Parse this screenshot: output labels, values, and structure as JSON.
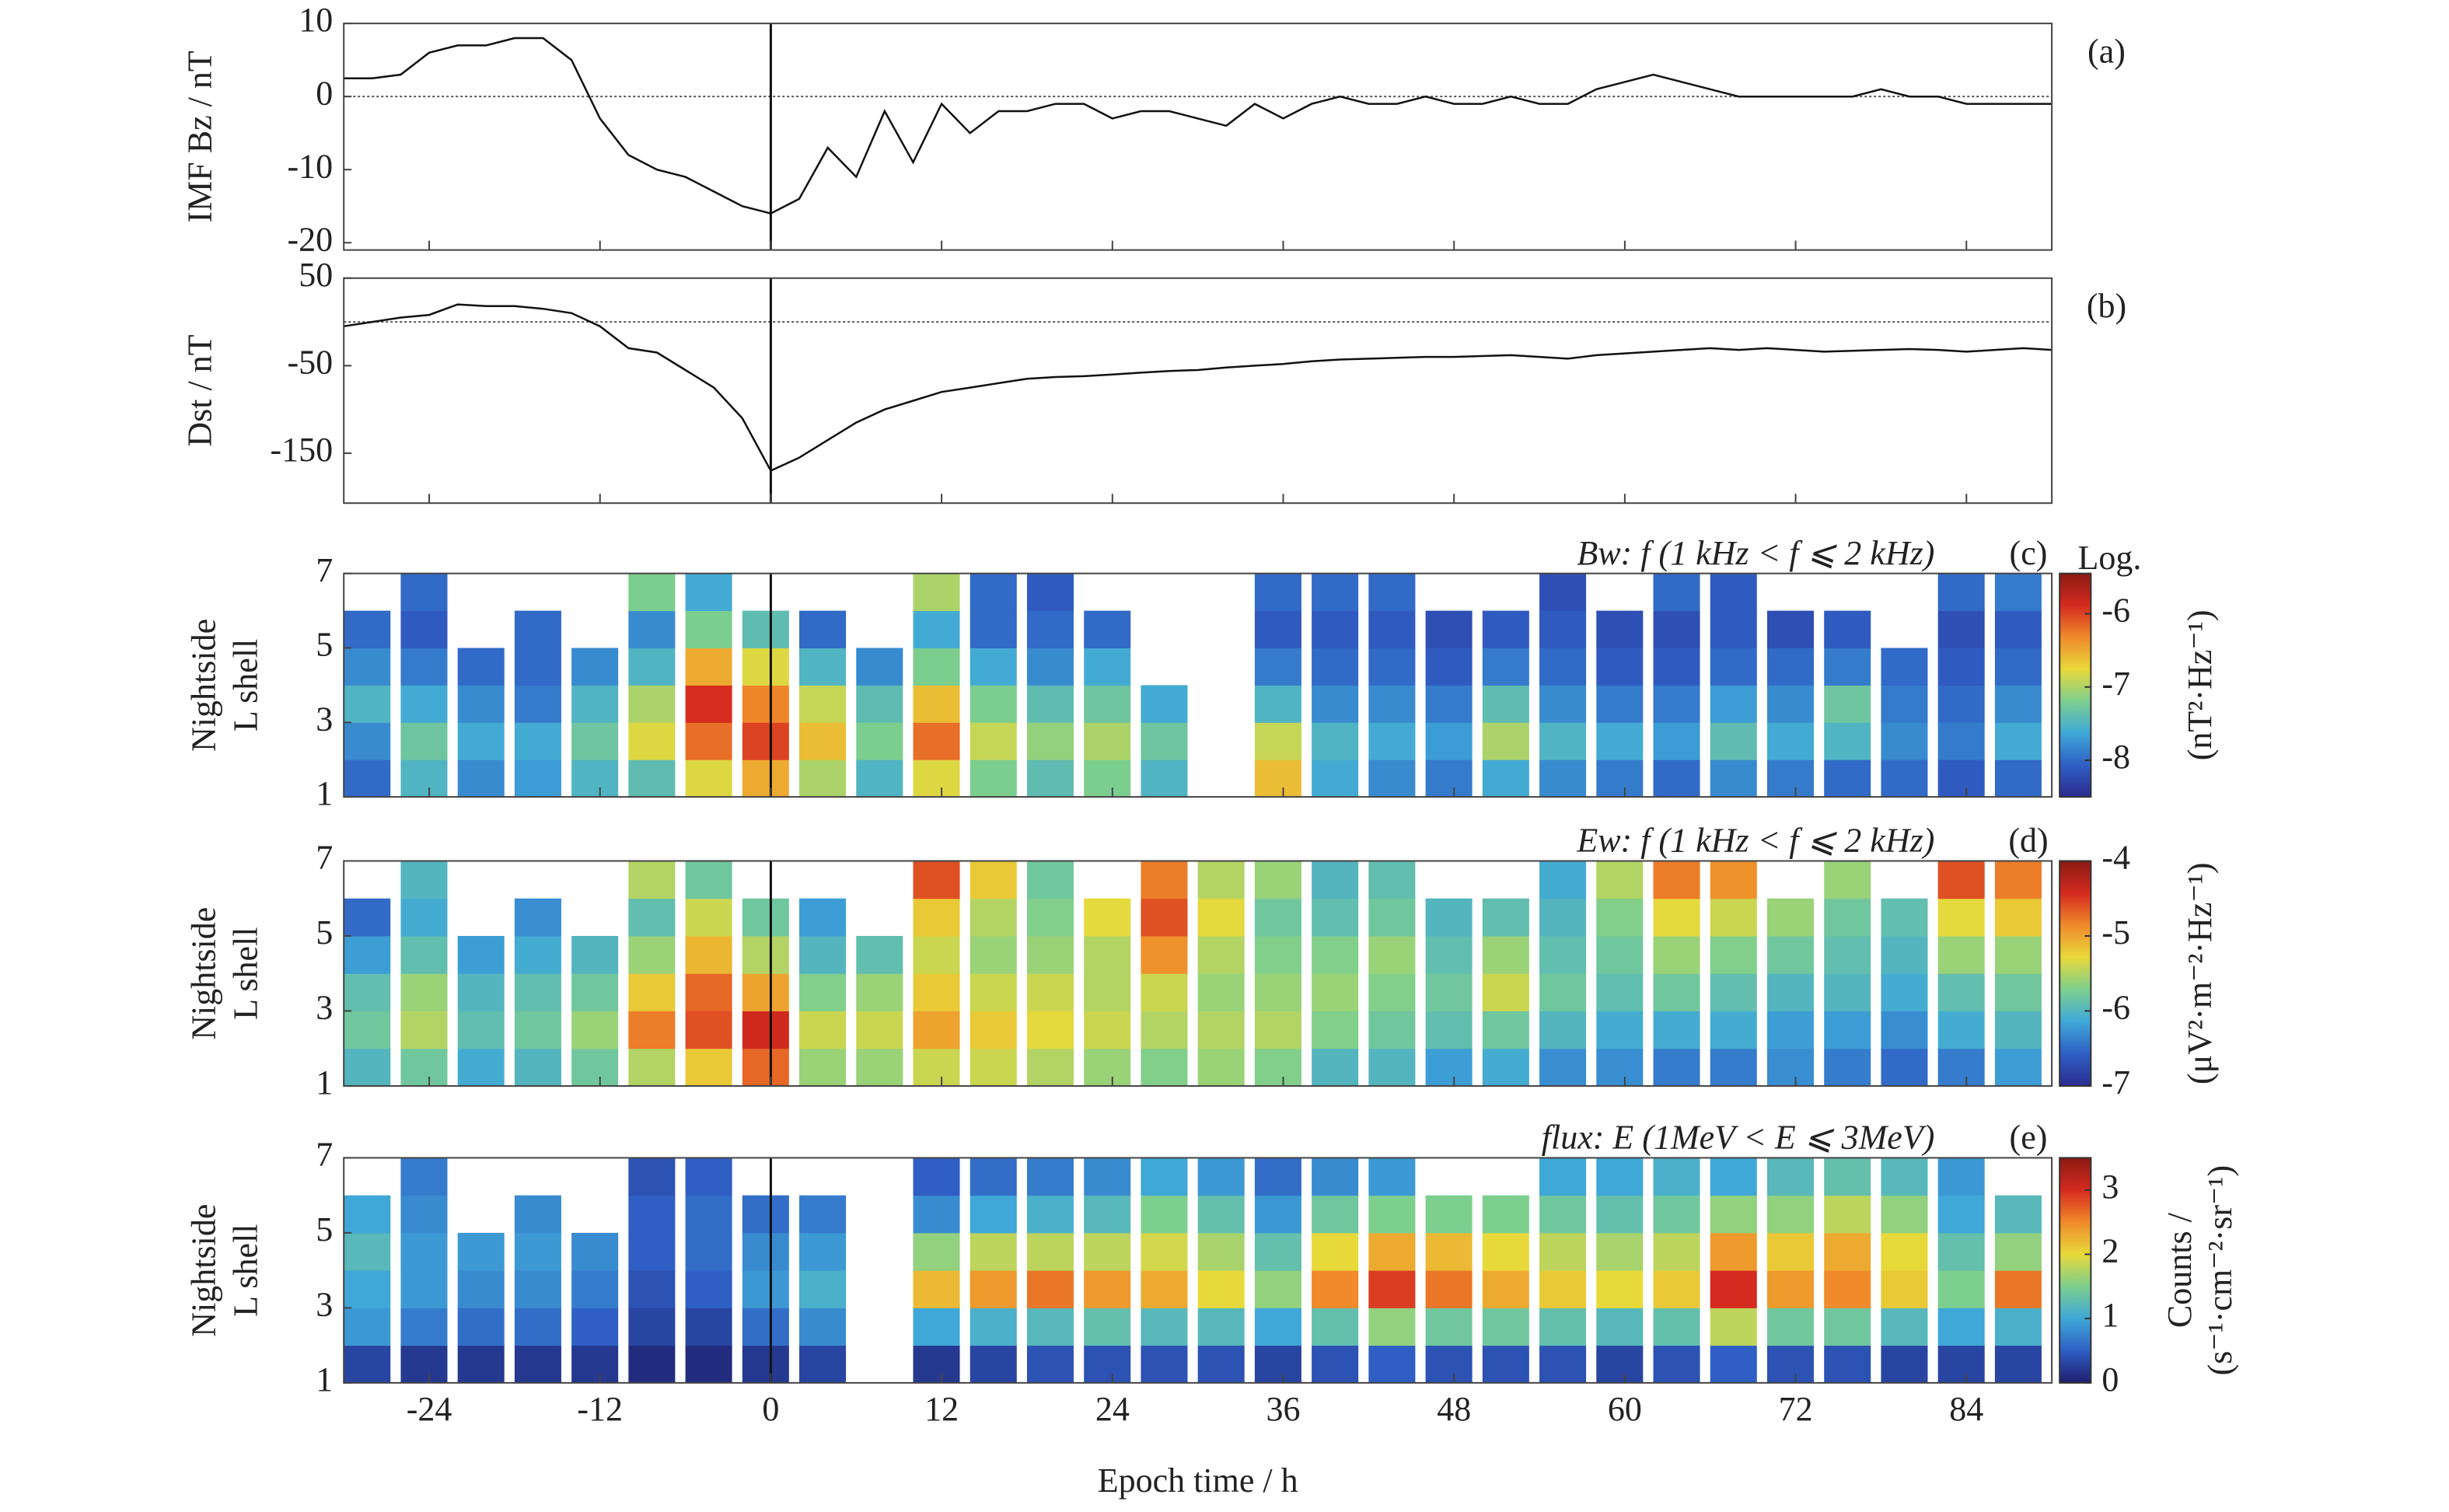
{
  "chart_data": [
    {
      "type": "line",
      "label": "(a)",
      "ylabel": [
        "IMF Bz / nT"
      ],
      "color": "#111111",
      "xlim": [
        -30,
        90
      ],
      "xticks": [
        -24,
        -12,
        0,
        12,
        24,
        36,
        48,
        60,
        72,
        84
      ],
      "ylim": [
        -21,
        10
      ],
      "yticks": [
        10,
        0,
        -10,
        -20
      ],
      "hline": 0,
      "vline": 0,
      "x": [
        -30,
        -28,
        -26,
        -24,
        -22,
        -20,
        -18,
        -16,
        -14,
        -12,
        -10,
        -8,
        -6,
        -4,
        -2,
        0,
        2,
        4,
        6,
        8,
        10,
        12,
        14,
        16,
        18,
        20,
        22,
        24,
        26,
        28,
        30,
        32,
        34,
        36,
        38,
        40,
        42,
        44,
        46,
        48,
        50,
        52,
        54,
        56,
        58,
        60,
        62,
        64,
        66,
        68,
        70,
        72,
        74,
        76,
        78,
        80,
        82,
        84,
        86,
        88,
        90
      ],
      "values": [
        2.5,
        2.5,
        3,
        6,
        7,
        7,
        8,
        8,
        5,
        -3,
        -8,
        -10,
        -11,
        -13,
        -15,
        -16,
        -14,
        -7,
        -11,
        -2,
        -9,
        -1,
        -5,
        -2,
        -2,
        -1,
        -1,
        -3,
        -2,
        -2,
        -3,
        -4,
        -1,
        -3,
        -1,
        0,
        -1,
        -1,
        0,
        -1,
        -1,
        0,
        -1,
        -1,
        1,
        2,
        3,
        2,
        1,
        0,
        0,
        0,
        0,
        0,
        1,
        0,
        0,
        -1,
        -1,
        -1,
        -1
      ]
    },
    {
      "type": "line",
      "label": "(b)",
      "ylabel": [
        "Dst / nT"
      ],
      "color": "#111111",
      "xlim": [
        -30,
        90
      ],
      "xticks": [
        -24,
        -12,
        0,
        12,
        24,
        36,
        48,
        60,
        72,
        84
      ],
      "ylim": [
        -207,
        50
      ],
      "yticks": [
        50,
        -50,
        -150
      ],
      "hline": 0,
      "vline": 0,
      "x": [
        -30,
        -28,
        -26,
        -24,
        -22,
        -20,
        -18,
        -16,
        -14,
        -12,
        -10,
        -8,
        -6,
        -4,
        -2,
        0,
        2,
        4,
        6,
        8,
        10,
        12,
        14,
        16,
        18,
        20,
        22,
        24,
        26,
        28,
        30,
        32,
        34,
        36,
        38,
        40,
        42,
        44,
        46,
        48,
        50,
        52,
        54,
        56,
        58,
        60,
        62,
        64,
        66,
        68,
        70,
        72,
        74,
        76,
        78,
        80,
        82,
        84,
        86,
        88,
        90
      ],
      "values": [
        -5,
        0,
        5,
        8,
        20,
        18,
        18,
        15,
        10,
        -5,
        -30,
        -35,
        -55,
        -75,
        -110,
        -170,
        -155,
        -135,
        -115,
        -100,
        -90,
        -80,
        -75,
        -70,
        -65,
        -63,
        -62,
        -60,
        -58,
        -56,
        -55,
        -52,
        -50,
        -48,
        -45,
        -43,
        -42,
        -41,
        -40,
        -40,
        -39,
        -38,
        -40,
        -42,
        -38,
        -36,
        -34,
        -32,
        -30,
        -32,
        -30,
        -32,
        -34,
        -33,
        -32,
        -31,
        -32,
        -34,
        -32,
        -30,
        -32
      ]
    },
    {
      "type": "heatmap",
      "label": "(c)",
      "title": "Bw: f (1 kHz < f ⩽ 2 kHz)",
      "ylabel": [
        "Nightside",
        "L shell"
      ],
      "xlim": [
        -30,
        90
      ],
      "xticks": [
        -24,
        -12,
        0,
        12,
        24,
        36,
        48,
        60,
        72,
        84
      ],
      "ylim": [
        1,
        7
      ],
      "yticks": [
        1,
        3,
        5,
        7
      ],
      "vline": 0,
      "clim": [
        -8.5,
        -5.45
      ],
      "cticks": [
        -6,
        -7,
        -8
      ],
      "ctitle": "Log.",
      "clabel": [
        "(nT²·Hz⁻¹)"
      ],
      "colormap": [
        "#2b2c8f",
        "#2f5fc4",
        "#3fa8d8",
        "#7dcf8e",
        "#e8d93a",
        "#f08a2a",
        "#d42a1f",
        "#8b1a12"
      ],
      "x": [
        -28,
        -24,
        -20,
        -16,
        -12,
        -8,
        -4,
        0,
        4,
        8,
        12,
        16,
        20,
        24,
        28,
        32,
        36,
        40,
        44,
        48,
        52,
        56,
        60,
        64,
        68,
        72,
        76,
        80,
        84,
        88
      ],
      "values": [
        [
          -8,
          -7.8,
          -7.5,
          -7.8,
          -8,
          null
        ],
        [
          -7.5,
          -7.3,
          -7.6,
          -7.9,
          -8.1,
          -8
        ],
        [
          -7.8,
          -7.6,
          -7.8,
          -8,
          null,
          null
        ],
        [
          -7.7,
          -7.6,
          -7.9,
          -8,
          -8,
          null
        ],
        [
          -7.5,
          -7.3,
          -7.5,
          -7.8,
          null,
          null
        ],
        [
          -7.4,
          -6.8,
          -7,
          -7.5,
          -7.8,
          -7.2
        ],
        [
          -6.8,
          -6.2,
          -5.9,
          -6.5,
          -7.2,
          -7.6
        ],
        [
          -6.5,
          -6,
          -6.3,
          -6.8,
          -7.4,
          null
        ],
        [
          -7,
          -6.6,
          -6.9,
          -7.5,
          -8,
          null
        ],
        [
          -7.5,
          -7.2,
          -7.4,
          -7.8,
          null,
          null
        ],
        [
          -6.8,
          -6.2,
          -6.6,
          -7.2,
          -7.6,
          -7
        ],
        [
          -7.2,
          -6.9,
          -7.2,
          -7.6,
          -8,
          -8
        ],
        [
          -7.4,
          -7.1,
          -7.4,
          -7.8,
          -8,
          -8.1
        ],
        [
          -7.2,
          -7,
          -7.3,
          -7.6,
          -8,
          null
        ],
        [
          -7.5,
          -7.3,
          -7.6,
          null,
          null,
          null
        ],
        [
          null,
          null,
          null,
          null,
          null,
          null
        ],
        [
          -6.6,
          -6.9,
          -7.5,
          -7.9,
          -8.1,
          -8
        ],
        [
          -7.6,
          -7.5,
          -7.8,
          -8,
          -8.1,
          -8
        ],
        [
          -7.8,
          -7.6,
          -7.8,
          -8,
          -8.1,
          -8
        ],
        [
          -7.9,
          -7.7,
          -7.9,
          -8.1,
          -8.2,
          null
        ],
        [
          -7.6,
          -7,
          -7.4,
          -7.9,
          -8.1,
          null
        ],
        [
          -7.8,
          -7.5,
          -7.8,
          -8,
          -8.1,
          -8.2
        ],
        [
          -7.9,
          -7.6,
          -7.9,
          -8.1,
          -8.2,
          null
        ],
        [
          -8,
          -7.7,
          -7.9,
          -8.1,
          -8.2,
          -8
        ],
        [
          -7.8,
          -7.4,
          -7.7,
          -8,
          -8.1,
          -8.1
        ],
        [
          -7.9,
          -7.6,
          -7.8,
          -8,
          -8.2,
          null
        ],
        [
          -8,
          -7.5,
          -7.3,
          -7.9,
          -8.1,
          null
        ],
        [
          -8,
          -7.8,
          -7.9,
          -8,
          null,
          null
        ],
        [
          -8.1,
          -7.9,
          -8,
          -8.1,
          -8.2,
          -8
        ],
        [
          -8,
          -7.6,
          -7.8,
          -8,
          -8.1,
          -7.9
        ]
      ]
    },
    {
      "type": "heatmap",
      "label": "(d)",
      "title": "Ew: f (1 kHz < f ⩽ 2 kHz)",
      "ylabel": [
        "Nightside",
        "L shell"
      ],
      "xlim": [
        -30,
        90
      ],
      "xticks": [
        -24,
        -12,
        0,
        12,
        24,
        36,
        48,
        60,
        72,
        84
      ],
      "ylim": [
        1,
        7
      ],
      "yticks": [
        1,
        3,
        5,
        7
      ],
      "vline": 0,
      "clim": [
        -7,
        -4
      ],
      "cticks": [
        -4,
        -5,
        -6,
        -7
      ],
      "clabel": [
        "(μV²·m⁻²·Hz⁻¹)"
      ],
      "colormap": [
        "#2b2c8f",
        "#2f5fc4",
        "#3fa8d8",
        "#7dcf8e",
        "#e8d93a",
        "#f08a2a",
        "#d42a1f",
        "#8b1a12"
      ],
      "x": [
        -28,
        -24,
        -20,
        -16,
        -12,
        -8,
        -4,
        0,
        4,
        8,
        12,
        16,
        20,
        24,
        28,
        32,
        36,
        40,
        44,
        48,
        52,
        56,
        60,
        64,
        68,
        72,
        76,
        80,
        84,
        88
      ],
      "values": [
        [
          -6,
          -5.8,
          -5.9,
          -6.2,
          -6.5,
          null
        ],
        [
          -5.8,
          -5.5,
          -5.6,
          -5.9,
          -6.1,
          -6
        ],
        [
          -6.1,
          -5.9,
          -6,
          -6.2,
          null,
          null
        ],
        [
          -6,
          -5.8,
          -5.9,
          -6.1,
          -6.3,
          null
        ],
        [
          -5.8,
          -5.6,
          -5.8,
          -6,
          null,
          null
        ],
        [
          -5.5,
          -4.8,
          -5.2,
          -5.6,
          -5.9,
          -5.5
        ],
        [
          -5.2,
          -4.6,
          -4.7,
          -5.1,
          -5.4,
          -5.8
        ],
        [
          -4.7,
          -4.4,
          -5,
          -5.5,
          -5.8,
          null
        ],
        [
          -5.6,
          -5.4,
          -5.7,
          -6,
          -6.2,
          null
        ],
        [
          -5.6,
          -5.4,
          -5.6,
          -5.9,
          null,
          null
        ],
        [
          -5.4,
          -5,
          -5.2,
          -5.4,
          -5.2,
          -4.6
        ],
        [
          -5.4,
          -5.2,
          -5.4,
          -5.6,
          -5.5,
          -5.2
        ],
        [
          -5.5,
          -5.3,
          -5.4,
          -5.6,
          -5.7,
          -5.8
        ],
        [
          -5.6,
          -5.4,
          -5.5,
          -5.5,
          -5.3,
          null
        ],
        [
          -5.7,
          -5.5,
          -5.4,
          -4.9,
          -4.6,
          -4.8
        ],
        [
          -5.6,
          -5.5,
          -5.6,
          -5.5,
          -5.3,
          -5.5
        ],
        [
          -5.7,
          -5.5,
          -5.6,
          -5.7,
          -5.8,
          -5.6
        ],
        [
          -6,
          -5.7,
          -5.6,
          -5.7,
          -5.9,
          -6
        ],
        [
          -6,
          -5.8,
          -5.7,
          -5.6,
          -5.8,
          -5.9
        ],
        [
          -6.2,
          -5.9,
          -5.8,
          -5.9,
          -6,
          null
        ],
        [
          -6.1,
          -5.8,
          -5.4,
          -5.6,
          -5.9,
          null
        ],
        [
          -6.3,
          -6,
          -5.8,
          -5.9,
          -6,
          -6.1
        ],
        [
          -6.3,
          -6.1,
          -5.9,
          -5.8,
          -5.7,
          -5.5
        ],
        [
          -6.4,
          -6.1,
          -5.8,
          -5.6,
          -5.3,
          -4.8
        ],
        [
          -6.4,
          -6.1,
          -5.9,
          -5.7,
          -5.4,
          -4.9
        ],
        [
          -6.3,
          -6.2,
          -6,
          -5.8,
          -5.6,
          null
        ],
        [
          -6.4,
          -6.2,
          -6,
          -5.9,
          -5.8,
          -5.6
        ],
        [
          -6.5,
          -6.3,
          -6.1,
          -6,
          -5.9,
          null
        ],
        [
          -6.4,
          -6.1,
          -5.9,
          -5.6,
          -5.3,
          -4.6
        ],
        [
          -6.2,
          -6,
          -5.8,
          -5.6,
          -5.2,
          -4.8
        ]
      ]
    },
    {
      "type": "heatmap",
      "label": "(e)",
      "title": "flux: E (1MeV < E ⩽ 3MeV)",
      "ylabel": [
        "Nightside",
        "L shell"
      ],
      "xlabel": "Epoch time / h",
      "xlim": [
        -30,
        90
      ],
      "xticks": [
        -24,
        -12,
        0,
        12,
        24,
        36,
        48,
        60,
        72,
        84
      ],
      "ylim": [
        1,
        7
      ],
      "yticks": [
        1,
        3,
        5,
        7
      ],
      "vline": 0,
      "clim": [
        0,
        3.5
      ],
      "cticks": [
        3,
        2,
        1,
        0
      ],
      "clabel": [
        "Counts /",
        "(s⁻¹·cm⁻²·sr⁻¹)"
      ],
      "colormap": [
        "#1f1f6e",
        "#2f5fc4",
        "#3fa8d8",
        "#7dcf8e",
        "#e8d93a",
        "#f08a2a",
        "#d42a1f",
        "#8b1a12"
      ],
      "x": [
        -28,
        -24,
        -20,
        -16,
        -12,
        -8,
        -4,
        0,
        4,
        8,
        12,
        16,
        20,
        24,
        28,
        32,
        36,
        40,
        44,
        48,
        52,
        56,
        60,
        64,
        68,
        72,
        76,
        80,
        84,
        88
      ],
      "values": [
        [
          0.3,
          0.9,
          1,
          1.2,
          1,
          null
        ],
        [
          0.2,
          0.7,
          0.9,
          0.9,
          0.8,
          0.7
        ],
        [
          0.2,
          0.6,
          0.8,
          0.9,
          null,
          null
        ],
        [
          0.2,
          0.6,
          0.8,
          0.9,
          0.8,
          null
        ],
        [
          0.2,
          0.5,
          0.7,
          0.8,
          null,
          null
        ],
        [
          0.1,
          0.3,
          0.4,
          0.5,
          0.5,
          0.4
        ],
        [
          0.1,
          0.3,
          0.5,
          0.6,
          0.6,
          0.5
        ],
        [
          0.2,
          0.6,
          0.9,
          0.8,
          0.6,
          null
        ],
        [
          0.3,
          0.8,
          1.1,
          0.9,
          0.7,
          null
        ],
        [
          null,
          null,
          null,
          null,
          null,
          null
        ],
        [
          0.2,
          1,
          2.2,
          1.6,
          0.8,
          0.5
        ],
        [
          0.3,
          1.1,
          2.4,
          1.8,
          1,
          0.6
        ],
        [
          0.4,
          1.2,
          2.6,
          1.8,
          1.1,
          0.7
        ],
        [
          0.4,
          1.3,
          2.4,
          1.8,
          1.2,
          0.8
        ],
        [
          0.4,
          1.2,
          2.3,
          1.9,
          1.5,
          1
        ],
        [
          0.4,
          1.2,
          2,
          1.7,
          1.3,
          0.9
        ],
        [
          0.3,
          1,
          1.6,
          1.3,
          0.9,
          0.6
        ],
        [
          0.4,
          1.3,
          2.5,
          2,
          1.4,
          0.8
        ],
        [
          0.5,
          1.6,
          2.9,
          2.3,
          1.5,
          0.9
        ],
        [
          0.4,
          1.4,
          2.6,
          2.2,
          1.5,
          null
        ],
        [
          0.4,
          1.4,
          2.3,
          2,
          1.5,
          null
        ],
        [
          0.4,
          1.3,
          2.1,
          1.8,
          1.4,
          1
        ],
        [
          0.3,
          1.2,
          2,
          1.7,
          1.3,
          1
        ],
        [
          0.4,
          1.3,
          2.1,
          1.8,
          1.4,
          1.1
        ],
        [
          0.5,
          1.8,
          3,
          2.4,
          1.6,
          1
        ],
        [
          0.4,
          1.4,
          2.4,
          2.1,
          1.6,
          1.2
        ],
        [
          0.4,
          1.4,
          2.5,
          2.3,
          1.8,
          1.3
        ],
        [
          0.3,
          1.2,
          2.1,
          2,
          1.6,
          1.2
        ],
        [
          0.3,
          1,
          1.5,
          1.3,
          1,
          0.9
        ],
        [
          0.3,
          1.1,
          2.6,
          1.6,
          1.2,
          null
        ]
      ]
    }
  ]
}
